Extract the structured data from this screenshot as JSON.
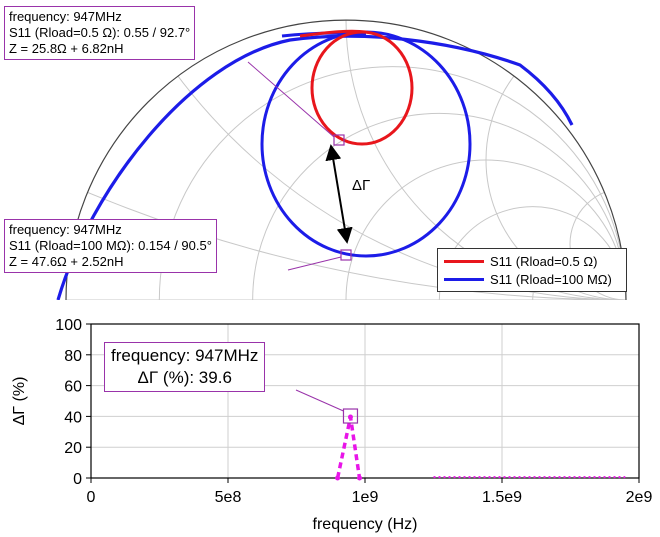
{
  "chart_data": [
    {
      "type": "smith",
      "series": [
        {
          "name": "S11 (Rload=0.5 Ω)",
          "color": "#e8161c"
        },
        {
          "name": "S11 (Rload=100 MΩ)",
          "color": "#1c1ce8"
        }
      ],
      "annotations": [
        {
          "lines": [
            "frequency: 947MHz",
            "S11 (Rload=0.5 Ω): 0.55 / 92.7°",
            "Z = 25.8Ω + 6.82nH"
          ]
        },
        {
          "lines": [
            "frequency: 947MHz",
            "S11 (Rload=100 MΩ): 0.154 / 90.5°",
            "Z = 47.6Ω + 2.52nH"
          ]
        }
      ],
      "markers": [
        {
          "series": "S11 (Rload=0.5 Ω)",
          "magnitude": 0.55,
          "angle_deg": 92.7
        },
        {
          "series": "S11 (Rload=100 MΩ)",
          "magnitude": 0.154,
          "angle_deg": 90.5
        }
      ],
      "arrow_label": "ΔΓ",
      "legend_placement": "bottom-right"
    },
    {
      "type": "line",
      "xlabel": "frequency (Hz)",
      "ylabel": "ΔΓ (%)",
      "xlim": [
        0,
        2000000000
      ],
      "ylim": [
        0,
        100
      ],
      "x_ticks": [
        "0",
        "5e8",
        "1e9",
        "1.5e9",
        "2e9"
      ],
      "y_ticks": [
        "0",
        "20",
        "40",
        "60",
        "80",
        "100"
      ],
      "grid": true,
      "series": [
        {
          "color": "#e815e8",
          "points": [
            [
              900000000,
              0
            ],
            [
              947000000,
              39.6
            ],
            [
              980000000,
              0
            ]
          ]
        }
      ],
      "noise_band": {
        "x_start": 1250000000,
        "x_end": 1950000000,
        "approx_value": 0.6
      },
      "annotation": {
        "lines": [
          "frequency: 947MHz",
          "ΔΓ (%): 39.6"
        ],
        "x": 947000000,
        "y": 39.6
      }
    }
  ]
}
